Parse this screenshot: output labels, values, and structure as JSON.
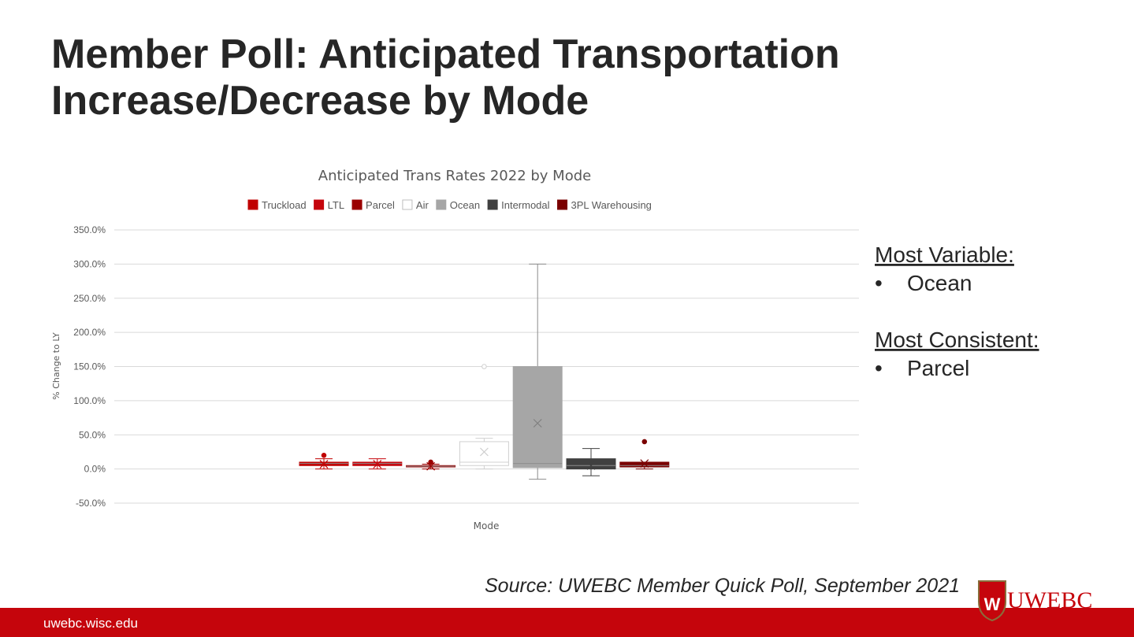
{
  "slide": {
    "title_lines": [
      "Member Poll: Anticipated Transportation",
      "Increase/Decrease by Mode"
    ],
    "notes": [
      {
        "heading": "Most Variable:",
        "item": "Ocean"
      },
      {
        "heading": "Most Consistent:",
        "item": "Parcel"
      }
    ],
    "source": "Source: UWEBC Member Quick Poll, September 2021",
    "footer": "uwebc.wisc.edu",
    "logo": "UWEBC"
  },
  "chart_data": {
    "type": "box",
    "title": "Anticipated Trans Rates 2022 by Mode",
    "x_label": "Mode",
    "y_label": "% Change to LY",
    "ylim": [
      -50,
      350
    ],
    "yticks": [
      {
        "value": -50,
        "label": "-50.0%"
      },
      {
        "value": 0,
        "label": "0.0%"
      },
      {
        "value": 50,
        "label": "50.0%"
      },
      {
        "value": 100,
        "label": "100.0%"
      },
      {
        "value": 150,
        "label": "150.0%"
      },
      {
        "value": 200,
        "label": "200.0%"
      },
      {
        "value": 250,
        "label": "250.0%"
      },
      {
        "value": 300,
        "label": "300.0%"
      },
      {
        "value": 350,
        "label": "350.0%"
      }
    ],
    "grid": true,
    "legend": "top",
    "series": [
      {
        "name": "Truckload",
        "color": "#c00000",
        "whisker_low": 0,
        "q1": 5,
        "median": 8,
        "q3": 10,
        "whisker_high": 15,
        "mean": 7,
        "outliers": [
          20
        ]
      },
      {
        "name": "LTL",
        "color": "#c5050c",
        "whisker_low": 0,
        "q1": 5,
        "median": 8,
        "q3": 10,
        "whisker_high": 15,
        "mean": 7,
        "outliers": []
      },
      {
        "name": "Parcel",
        "color": "#9b0000",
        "whisker_low": 0,
        "q1": 3,
        "median": 4,
        "q3": 5,
        "whisker_high": 7,
        "mean": 4,
        "outliers": [
          10
        ]
      },
      {
        "name": "Air",
        "color": "#ffffff",
        "whisker_low": 0,
        "q1": 5,
        "median": 10,
        "q3": 40,
        "whisker_high": 45,
        "mean": 25,
        "outliers": [
          150
        ]
      },
      {
        "name": "Ocean",
        "color": "#a6a6a6",
        "whisker_low": -15,
        "q1": 2,
        "median": 8,
        "q3": 150,
        "whisker_high": 300,
        "mean": 67,
        "outliers": []
      },
      {
        "name": "Intermodal",
        "color": "#404040",
        "whisker_low": -10,
        "q1": 0,
        "median": 5,
        "q3": 15,
        "whisker_high": 30,
        "mean": 5,
        "outliers": []
      },
      {
        "name": "3PL Warehousing",
        "color": "#7a0000",
        "whisker_low": 0,
        "q1": 3,
        "median": 5,
        "q3": 10,
        "whisker_high": 10,
        "mean": 8,
        "outliers": [
          40
        ]
      }
    ]
  }
}
